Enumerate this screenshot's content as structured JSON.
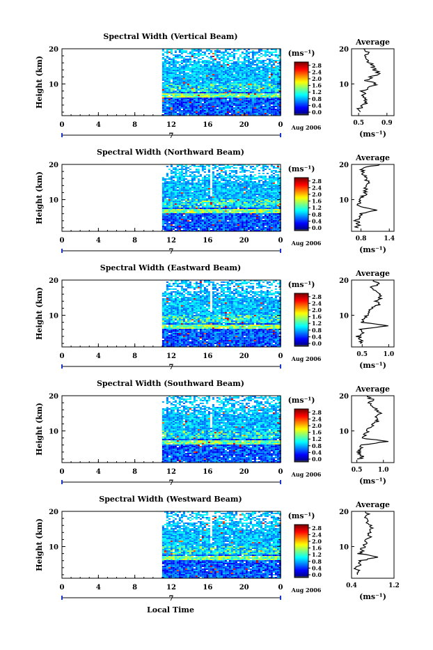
{
  "chart_data": [
    {
      "type": "heatmap",
      "title": "Spectral Width (Vertical Beam)",
      "ylabel": "Height (km)",
      "yticks": [
        "10",
        "20"
      ],
      "ylim": [
        1,
        20
      ],
      "xticks": [
        "0",
        "4",
        "8",
        "12",
        "16",
        "20",
        "0"
      ],
      "xlim": [
        0,
        24
      ],
      "data_start_hour": 11,
      "day_label": "7",
      "date_label": "Aug 2006",
      "colorbar": {
        "unit": "(ms⁻¹)",
        "ticks": [
          "2.8",
          "2.4",
          "2.0",
          "1.6",
          "1.2",
          "0.8",
          "0.4",
          "0.0"
        ],
        "range": [
          0,
          3
        ]
      },
      "profile": {
        "title": "Average",
        "xticks": [
          "0.5",
          "0.9"
        ],
        "xlim": [
          0.4,
          1.0
        ],
        "xlabel": "(ms⁻¹)",
        "yticks": [
          "10",
          "20"
        ],
        "heights": [
          2,
          3,
          4,
          5,
          6,
          7,
          8,
          9,
          10,
          11,
          12,
          13,
          14,
          15,
          16,
          17,
          18,
          19,
          20
        ],
        "values": [
          0.52,
          0.5,
          0.58,
          0.62,
          0.6,
          0.57,
          0.55,
          0.64,
          0.75,
          0.6,
          0.68,
          0.8,
          0.72,
          0.7,
          0.66,
          0.6,
          0.58,
          0.64,
          0.57
        ]
      }
    },
    {
      "type": "heatmap",
      "title": "Spectral Width (Northward Beam)",
      "ylabel": "Height (km)",
      "yticks": [
        "10",
        "20"
      ],
      "ylim": [
        1,
        20
      ],
      "xticks": [
        "0",
        "4",
        "8",
        "12",
        "16",
        "20",
        "0"
      ],
      "xlim": [
        0,
        24
      ],
      "data_start_hour": 11,
      "day_label": "7",
      "date_label": "Aug 2006",
      "colorbar": {
        "unit": "(ms⁻¹)",
        "ticks": [
          "2.8",
          "2.4",
          "2.0",
          "1.6",
          "1.2",
          "0.8",
          "0.4",
          "0.0"
        ],
        "range": [
          0,
          3
        ]
      },
      "profile": {
        "title": "Average",
        "xticks": [
          "0.8",
          "1.4"
        ],
        "xlim": [
          0.6,
          1.5
        ],
        "xlabel": "(ms⁻¹)",
        "yticks": [
          "10",
          "20"
        ],
        "heights": [
          2,
          3,
          4,
          5,
          6,
          7,
          8,
          9,
          10,
          11,
          12,
          13,
          14,
          15,
          16,
          17,
          18,
          19,
          20
        ],
        "values": [
          0.72,
          0.75,
          0.7,
          0.78,
          0.82,
          1.1,
          0.74,
          0.78,
          0.8,
          0.85,
          0.9,
          0.92,
          0.88,
          0.95,
          0.9,
          0.86,
          0.82,
          0.85,
          1.2
        ]
      }
    },
    {
      "type": "heatmap",
      "title": "Spectral Width (Eastward Beam)",
      "ylabel": "Height (km)",
      "yticks": [
        "10",
        "20"
      ],
      "ylim": [
        1,
        20
      ],
      "xticks": [
        "0",
        "4",
        "8",
        "12",
        "16",
        "20",
        "0"
      ],
      "xlim": [
        0,
        24
      ],
      "data_start_hour": 11,
      "day_label": "7",
      "date_label": "Aug 2006",
      "colorbar": {
        "unit": "(ms⁻¹)",
        "ticks": [
          "2.8",
          "2.4",
          "2.0",
          "1.6",
          "1.2",
          "0.8",
          "0.4",
          "0.0"
        ],
        "range": [
          0,
          3
        ]
      },
      "profile": {
        "title": "Average",
        "xticks": [
          "0.5",
          "1.0"
        ],
        "xlim": [
          0.3,
          1.1
        ],
        "xlabel": "(ms⁻¹)",
        "yticks": [
          "10",
          "20"
        ],
        "heights": [
          2,
          3,
          4,
          5,
          6,
          7,
          8,
          9,
          10,
          11,
          12,
          13,
          14,
          15,
          16,
          17,
          18,
          19,
          20
        ],
        "values": [
          0.45,
          0.5,
          0.42,
          0.55,
          0.48,
          0.95,
          0.5,
          0.55,
          0.6,
          0.65,
          0.7,
          0.8,
          0.78,
          0.85,
          0.8,
          0.75,
          0.7,
          0.8,
          0.72
        ]
      }
    },
    {
      "type": "heatmap",
      "title": "Spectral Width (Southward Beam)",
      "ylabel": "Height (km)",
      "yticks": [
        "10",
        "20"
      ],
      "ylim": [
        1,
        20
      ],
      "xticks": [
        "0",
        "4",
        "8",
        "12",
        "16",
        "20",
        "0"
      ],
      "xlim": [
        0,
        24
      ],
      "data_start_hour": 11,
      "day_label": "7",
      "date_label": "Aug 2006",
      "colorbar": {
        "unit": "(ms⁻¹)",
        "ticks": [
          "2.8",
          "2.4",
          "2.0",
          "1.6",
          "1.2",
          "0.8",
          "0.4",
          "0.0"
        ],
        "range": [
          0,
          3
        ]
      },
      "profile": {
        "title": "Average",
        "xticks": [
          "0.5",
          "1.0"
        ],
        "xlim": [
          0.4,
          1.2
        ],
        "xlabel": "(ms⁻¹)",
        "yticks": [
          "10",
          "20"
        ],
        "heights": [
          2,
          3,
          4,
          5,
          6,
          7,
          8,
          9,
          10,
          11,
          12,
          13,
          14,
          15,
          16,
          17,
          18,
          19,
          20
        ],
        "values": [
          0.55,
          0.6,
          0.52,
          0.58,
          0.62,
          1.05,
          0.6,
          0.65,
          0.7,
          0.75,
          0.82,
          0.9,
          0.85,
          0.92,
          0.88,
          0.8,
          0.75,
          0.78,
          0.7
        ]
      }
    },
    {
      "type": "heatmap",
      "title": "Spectral Width (Westward Beam)",
      "ylabel": "Height (km)",
      "yticks": [
        "10",
        "20"
      ],
      "ylim": [
        1,
        20
      ],
      "xticks": [
        "0",
        "4",
        "8",
        "12",
        "16",
        "20",
        "0"
      ],
      "xlim": [
        0,
        24
      ],
      "data_start_hour": 11,
      "day_label": "7",
      "date_label": "Aug 2006",
      "colorbar": {
        "unit": "(ms⁻¹)",
        "ticks": [
          "2.8",
          "2.4",
          "2.0",
          "1.6",
          "1.2",
          "0.8",
          "0.4",
          "0.0"
        ],
        "range": [
          0,
          3
        ]
      },
      "profile": {
        "title": "Average",
        "xticks": [
          "0.4",
          "1.2"
        ],
        "xlim": [
          0.4,
          1.2
        ],
        "xlabel": "(ms⁻¹)",
        "yticks": [
          "10",
          "20"
        ],
        "heights": [
          2,
          3,
          4,
          5,
          6,
          7,
          8,
          9,
          10,
          11,
          12,
          13,
          14,
          15,
          16,
          17,
          18,
          19,
          20
        ],
        "values": [
          0.5,
          0.52,
          0.48,
          0.55,
          0.58,
          0.9,
          0.55,
          0.6,
          0.62,
          0.66,
          0.7,
          0.75,
          0.72,
          0.78,
          0.74,
          0.7,
          0.68,
          0.72,
          0.66
        ]
      }
    }
  ],
  "xlabel_bottom": "Local Time"
}
